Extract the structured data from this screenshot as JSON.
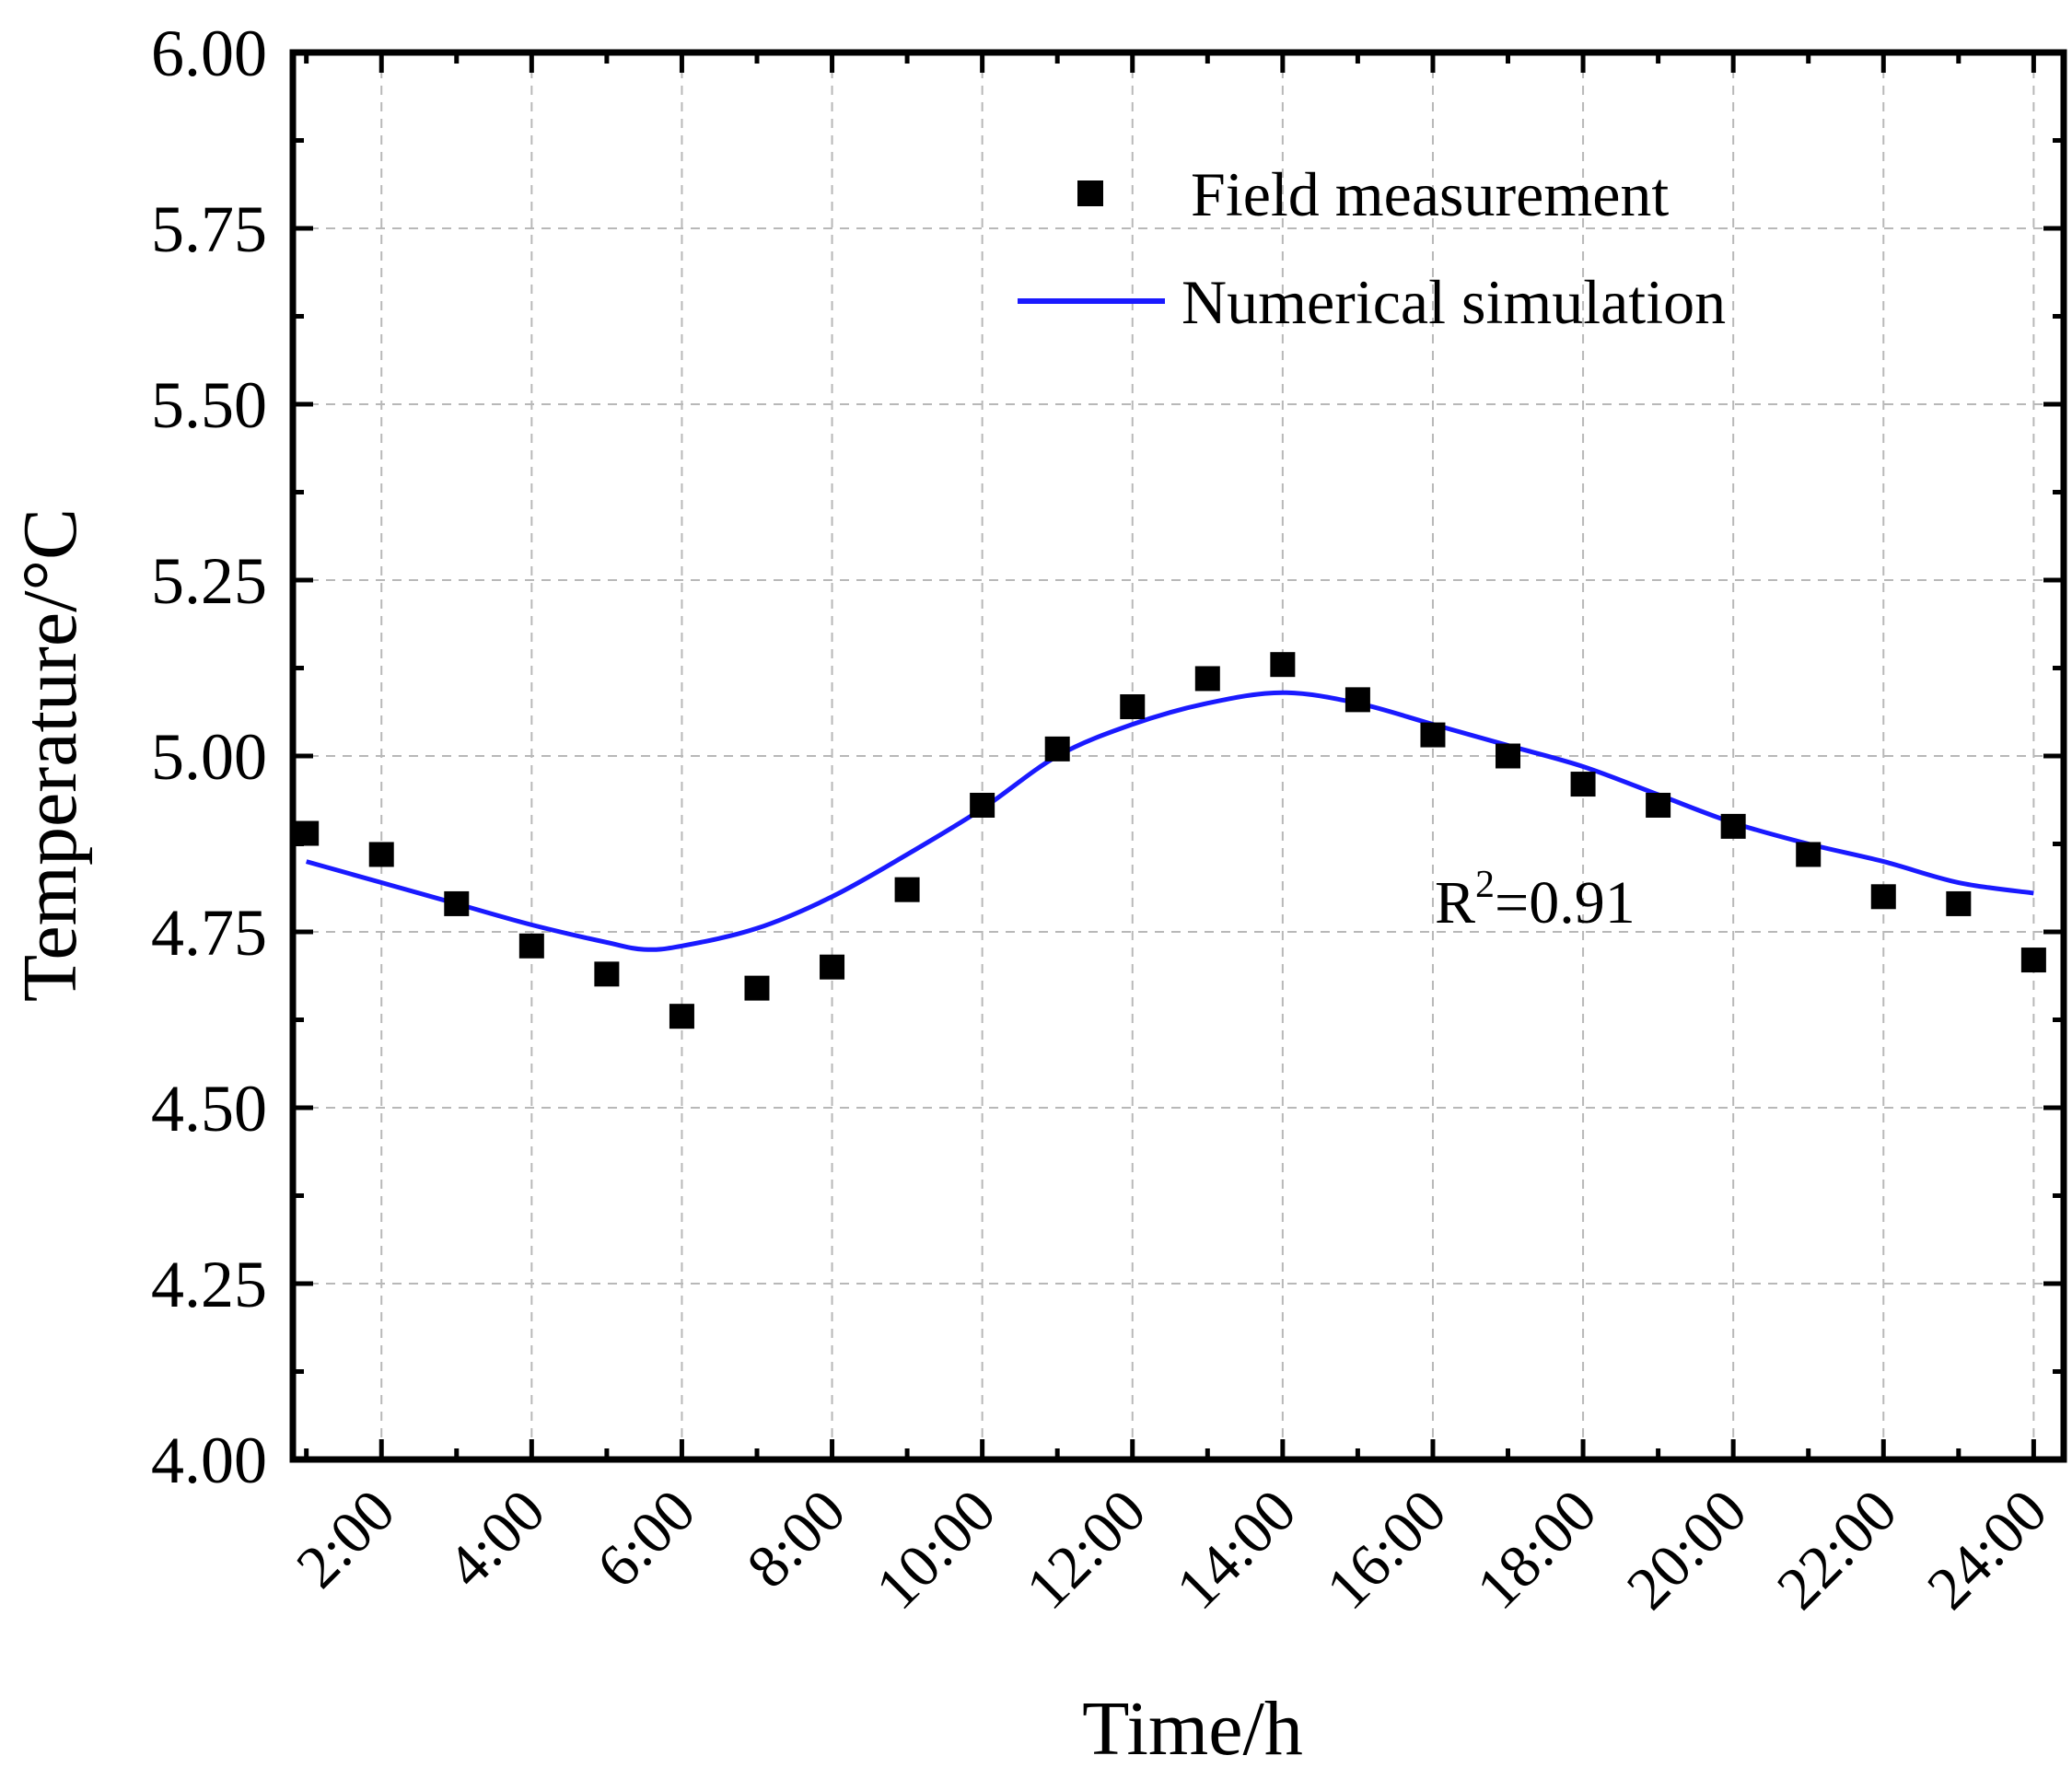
{
  "chart_data": {
    "type": "line",
    "xlabel": "Time/h",
    "ylabel": "Temperature/°C",
    "ylim": [
      4.0,
      6.0
    ],
    "yticks": [
      "4.00",
      "4.25",
      "4.50",
      "4.75",
      "5.00",
      "5.25",
      "5.50",
      "5.75",
      "6.00"
    ],
    "xlim": [
      0,
      24.5
    ],
    "xticks": [
      {
        "x": 2,
        "label": "2:00"
      },
      {
        "x": 4,
        "label": "4:00"
      },
      {
        "x": 6,
        "label": "6:00"
      },
      {
        "x": 8,
        "label": "8:00"
      },
      {
        "x": 10,
        "label": "10:00"
      },
      {
        "x": 12,
        "label": "12:00"
      },
      {
        "x": 14,
        "label": "14:00"
      },
      {
        "x": 16,
        "label": "16:00"
      },
      {
        "x": 18,
        "label": "18:00"
      },
      {
        "x": 20,
        "label": "20:00"
      },
      {
        "x": 22,
        "label": "22:00"
      },
      {
        "x": 24,
        "label": "24:00"
      }
    ],
    "grid": true,
    "legend_position": "top-right",
    "series": [
      {
        "name": "Field measurement",
        "kind": "scatter",
        "marker": "square",
        "color": "#000000",
        "x": [
          1,
          2,
          3,
          4,
          5,
          6,
          7,
          8,
          9,
          10,
          11,
          12,
          13,
          14,
          15,
          16,
          17,
          18,
          19,
          20,
          21,
          22,
          23,
          24
        ],
        "y": [
          4.89,
          4.86,
          4.79,
          4.73,
          4.69,
          4.63,
          4.67,
          4.7,
          4.81,
          4.93,
          5.01,
          5.07,
          5.11,
          5.13,
          5.08,
          5.03,
          5.0,
          4.96,
          4.93,
          4.9,
          4.86,
          4.8,
          4.79,
          4.71
        ]
      },
      {
        "name": "Numerical simulation",
        "kind": "line",
        "color": "#1a1aff",
        "x": [
          1,
          2,
          3,
          4,
          5,
          5.5,
          6,
          7,
          8,
          9,
          10,
          11,
          12,
          13,
          14,
          15,
          16,
          17,
          18,
          19,
          20,
          21,
          22,
          23,
          24
        ],
        "y": [
          4.85,
          4.82,
          4.79,
          4.76,
          4.735,
          4.725,
          4.73,
          4.755,
          4.8,
          4.86,
          4.925,
          5.0,
          5.045,
          5.075,
          5.09,
          5.075,
          5.045,
          5.015,
          4.985,
          4.945,
          4.905,
          4.875,
          4.85,
          4.82,
          4.805
        ]
      }
    ],
    "annotations": [
      {
        "text": "R",
        "sup": "2",
        "after": "=0.91"
      }
    ]
  }
}
